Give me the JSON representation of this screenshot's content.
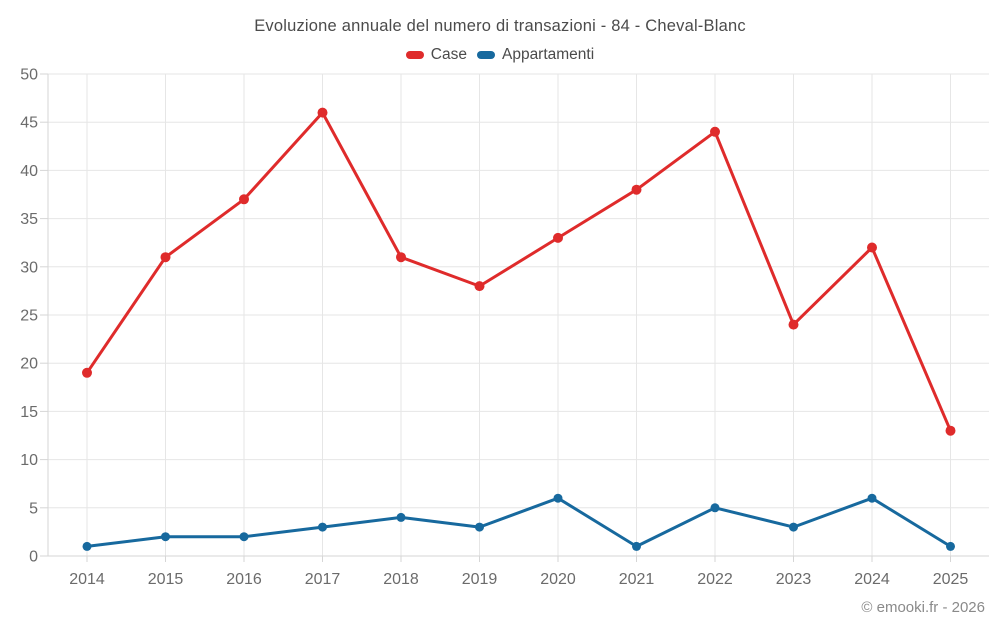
{
  "chart_data": {
    "type": "line",
    "title": "Evoluzione annuale del numero di transazioni - 84 - Cheval-Blanc",
    "x_categories": [
      "2014",
      "2015",
      "2016",
      "2017",
      "2018",
      "2019",
      "2020",
      "2021",
      "2022",
      "2023",
      "2024",
      "2025"
    ],
    "series": [
      {
        "name": "Case",
        "color": "#df2b2b",
        "values": [
          19,
          31,
          37,
          46,
          31,
          28,
          33,
          38,
          44,
          24,
          32,
          13
        ]
      },
      {
        "name": "Appartamenti",
        "color": "#17699e",
        "values": [
          1,
          2,
          2,
          3,
          4,
          3,
          6,
          1,
          5,
          3,
          6,
          1
        ]
      }
    ],
    "xlabel": "",
    "ylabel": "",
    "ylim": [
      0,
      50
    ],
    "ytick_step": 5,
    "grid": true,
    "legend_position": "top-center"
  },
  "colors": {
    "grid": "#e6e6e6",
    "axis": "#d6d6d6",
    "tick_label": "#6b6b6b",
    "title_text": "#4b4b4b",
    "footer_text": "#8a8a8a"
  },
  "footer": {
    "credit": "© emooki.fr - 2026"
  }
}
